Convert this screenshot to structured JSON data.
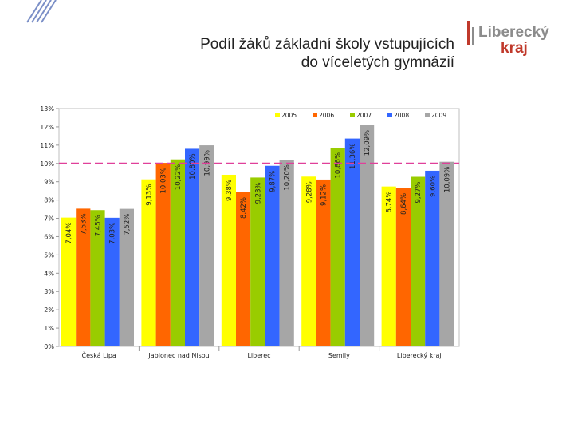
{
  "slide": {
    "title_line1": "Podíl žáků základní školy vstupujících",
    "title_line2": "do víceletých gymnázií"
  },
  "logo": {
    "text_top": "Liberecký",
    "text_bottom": "kraj",
    "color": "#c0392b",
    "gray": "#8c8c8c"
  },
  "chart_data": {
    "type": "bar",
    "title": "",
    "xlabel": "",
    "ylabel": "",
    "ylim": [
      0,
      13
    ],
    "yticks": [
      0,
      1,
      2,
      3,
      4,
      5,
      6,
      7,
      8,
      9,
      10,
      11,
      12,
      13
    ],
    "ytick_suffix": "%",
    "grid": false,
    "legend_position": "top-right",
    "reference_line": {
      "value": 10,
      "color": "#e0409a",
      "style": "dashed"
    },
    "categories": [
      "Česká Lípa",
      "Jablonec nad Nisou",
      "Liberec",
      "Semily",
      "Liberecký kraj"
    ],
    "series": [
      {
        "name": "2005",
        "color": "#ffff00",
        "values": [
          7.04,
          9.13,
          9.38,
          9.28,
          8.74
        ],
        "labels": [
          "7,04%",
          "9,13%",
          "9,38%",
          "9,28%",
          "8,74%"
        ]
      },
      {
        "name": "2006",
        "color": "#ff6600",
        "values": [
          7.53,
          10.03,
          8.42,
          9.12,
          8.64
        ],
        "labels": [
          "7,53%",
          "10,03%",
          "8,42%",
          "9,12%",
          "8,64%"
        ]
      },
      {
        "name": "2007",
        "color": "#99cc00",
        "values": [
          7.45,
          10.22,
          9.23,
          10.86,
          9.27
        ],
        "labels": [
          "7,45%",
          "10,22%",
          "9,23%",
          "10,86%",
          "9,27%"
        ]
      },
      {
        "name": "2008",
        "color": "#3366ff",
        "values": [
          7.03,
          10.8,
          9.87,
          11.36,
          9.6
        ],
        "labels": [
          "7,03%",
          "10,80%",
          "9,87%",
          "11,36%",
          "9,60%"
        ]
      },
      {
        "name": "2009",
        "color": "#a6a6a6",
        "values": [
          7.52,
          10.99,
          10.2,
          12.09,
          10.09
        ],
        "labels": [
          "7,52%",
          "10,99%",
          "10,20%",
          "12,09%",
          "10,09%"
        ]
      }
    ]
  }
}
